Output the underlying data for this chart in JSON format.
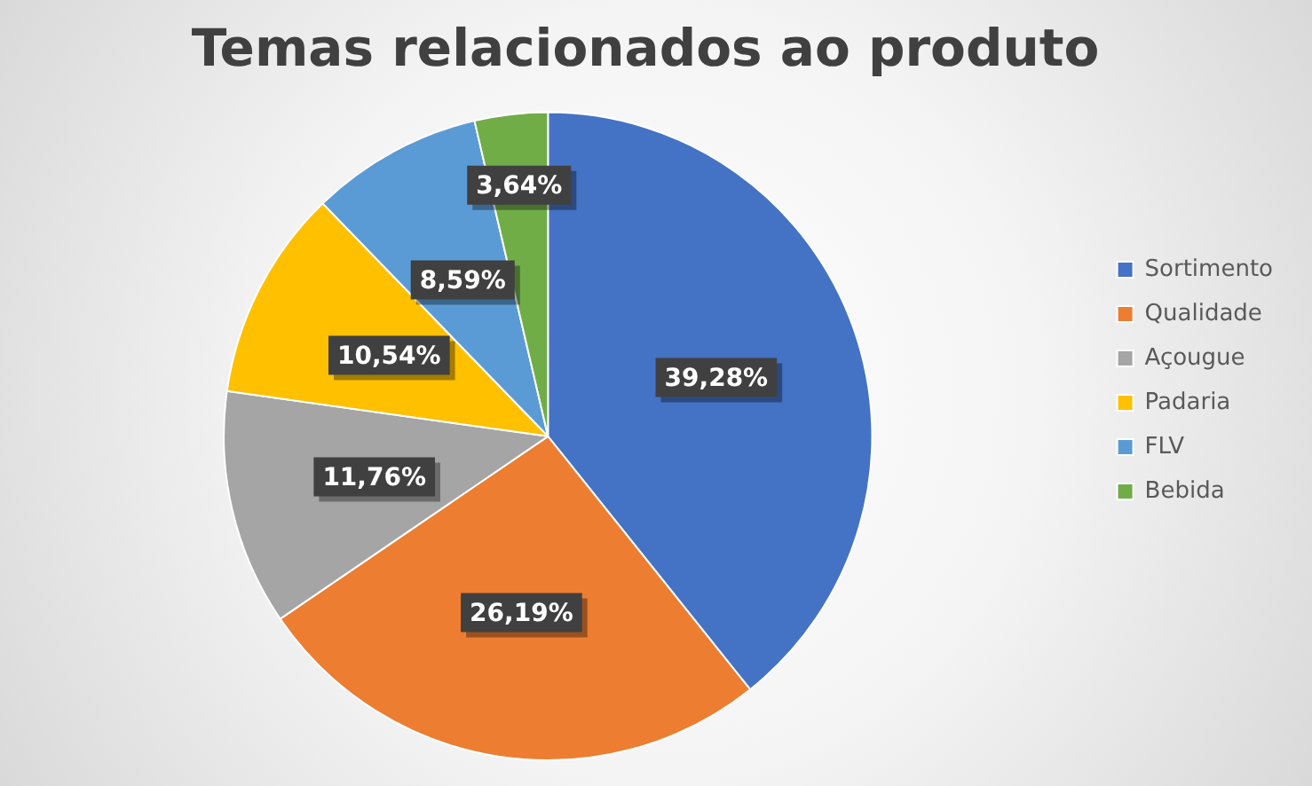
{
  "chart_data": {
    "type": "pie",
    "title": "Temas relacionados ao produto",
    "categories": [
      "Sortimento",
      "Qualidade",
      "Açougue",
      "Padaria",
      "FLV",
      "Bebida"
    ],
    "values": [
      39.28,
      26.19,
      11.76,
      10.54,
      8.59,
      3.64
    ],
    "value_labels": [
      "39,28%",
      "26,19%",
      "11,76%",
      "10,54%",
      "8,59%",
      "3,64%"
    ],
    "colors": [
      "#4472c4",
      "#ed7d31",
      "#a5a5a5",
      "#ffc000",
      "#5b9bd5",
      "#70ad47"
    ],
    "legend": "right"
  }
}
